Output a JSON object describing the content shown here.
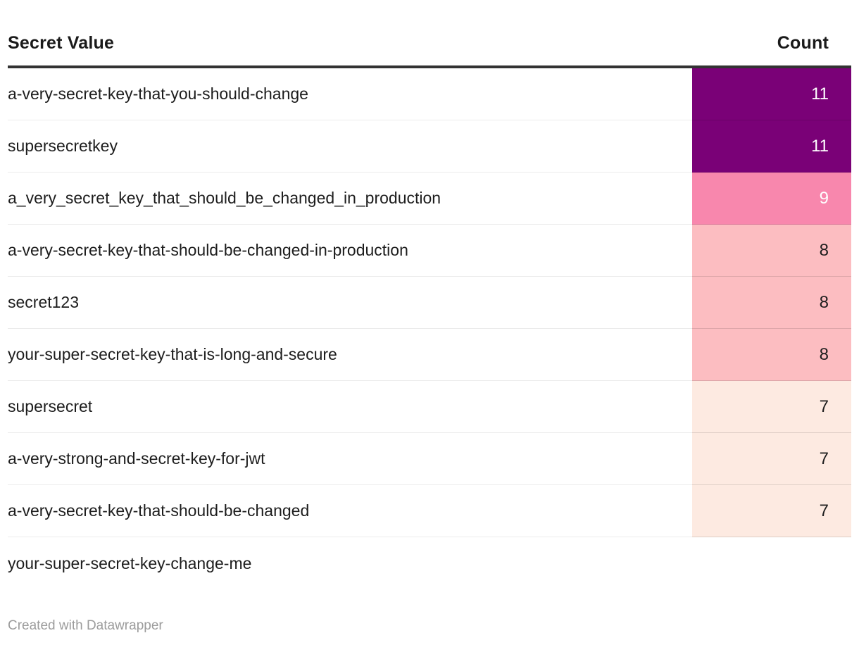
{
  "table": {
    "columns": [
      {
        "label": "Secret Value"
      },
      {
        "label": "Count"
      }
    ],
    "rows": [
      {
        "secret": "a-very-secret-key-that-you-should-change",
        "count": "11",
        "cell_color": "#7a0177",
        "text_color": "#ffffff"
      },
      {
        "secret": "supersecretkey",
        "count": "11",
        "cell_color": "#7a0177",
        "text_color": "#ffffff"
      },
      {
        "secret": "a_very_secret_key_that_should_be_changed_in_production",
        "count": "9",
        "cell_color": "#f887ad",
        "text_color": "#ffffff"
      },
      {
        "secret": "a-very-secret-key-that-should-be-changed-in-production",
        "count": "8",
        "cell_color": "#fcbdc1",
        "text_color": "#1d1d1d"
      },
      {
        "secret": "secret123",
        "count": "8",
        "cell_color": "#fcbdc1",
        "text_color": "#1d1d1d"
      },
      {
        "secret": "your-super-secret-key-that-is-long-and-secure",
        "count": "8",
        "cell_color": "#fcbdc1",
        "text_color": "#1d1d1d"
      },
      {
        "secret": "supersecret",
        "count": "7",
        "cell_color": "#fdeae1",
        "text_color": "#1d1d1d"
      },
      {
        "secret": "a-very-strong-and-secret-key-for-jwt",
        "count": "7",
        "cell_color": "#fdeae1",
        "text_color": "#1d1d1d"
      },
      {
        "secret": "a-very-secret-key-that-should-be-changed",
        "count": "7",
        "cell_color": "#fdeae1",
        "text_color": "#1d1d1d"
      },
      {
        "secret": "your-super-secret-key-change-me",
        "count": "",
        "cell_color": "",
        "text_color": "#1d1d1d"
      }
    ]
  },
  "footer": {
    "credit": "Created with Datawrapper"
  },
  "colors": {
    "header_rule": "#333333",
    "row_separator": "#ebebeb",
    "footer_text": "#9c9c9c"
  },
  "chart_data": {
    "type": "table",
    "title": "",
    "columns": [
      "Secret Value",
      "Count"
    ],
    "rows": [
      [
        "a-very-secret-key-that-you-should-change",
        11
      ],
      [
        "supersecretkey",
        11
      ],
      [
        "a_very_secret_key_that_should_be_changed_in_production",
        9
      ],
      [
        "a-very-secret-key-that-should-be-changed-in-production",
        8
      ],
      [
        "secret123",
        8
      ],
      [
        "your-super-secret-key-that-is-long-and-secure",
        8
      ],
      [
        "supersecret",
        7
      ],
      [
        "a-very-strong-and-secret-key-for-jwt",
        7
      ],
      [
        "a-very-secret-key-that-should-be-changed",
        7
      ],
      [
        "your-super-secret-key-change-me",
        null
      ]
    ],
    "heatmap_column": "Count",
    "color_scale": {
      "11": "#7a0177",
      "9": "#f887ad",
      "8": "#fcbdc1",
      "7": "#fdeae1"
    },
    "legend_position": "none",
    "grid": false
  }
}
